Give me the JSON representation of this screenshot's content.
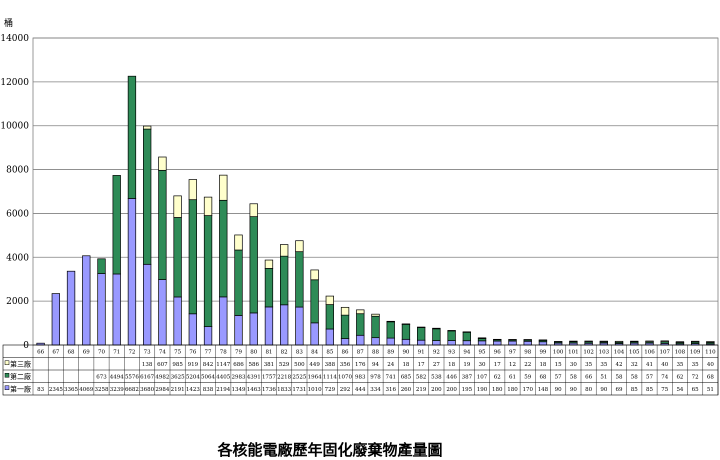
{
  "chart_data": {
    "type": "bar",
    "stacked": true,
    "title": "各核能電廠歷年固化廢棄物產量圖",
    "ylabel": "桶",
    "ylim": [
      0,
      14000
    ],
    "yticks": [
      0,
      2000,
      4000,
      6000,
      8000,
      10000,
      12000,
      14000
    ],
    "grid": true,
    "legend": "data-table-left",
    "categories": [
      "66",
      "67",
      "68",
      "69",
      "70",
      "71",
      "72",
      "73",
      "74",
      "75",
      "76",
      "77",
      "78",
      "79",
      "80",
      "81",
      "82",
      "83",
      "84",
      "85",
      "86",
      "87",
      "88",
      "89",
      "90",
      "91",
      "92",
      "93",
      "94",
      "95",
      "96",
      "97",
      "98",
      "99",
      "100",
      "101",
      "102",
      "103",
      "104",
      "105",
      "106",
      "107",
      "108",
      "109",
      "110"
    ],
    "series": [
      {
        "name": "第一廠",
        "color": "#9999ff",
        "values": [
          83,
          2345,
          3365,
          4069,
          3258,
          3239,
          6682,
          3680,
          2984,
          2191,
          1423,
          838,
          2194,
          1349,
          1463,
          1736,
          1833,
          1731,
          1010,
          729,
          292,
          444,
          334,
          316,
          260,
          219,
          200,
          200,
          195,
          190,
          180,
          180,
          170,
          148,
          90,
          90,
          80,
          90,
          69,
          85,
          85,
          75,
          54,
          65,
          51
        ]
      },
      {
        "name": "第二廠",
        "color": "#2e8b57",
        "values": [
          null,
          null,
          null,
          null,
          673,
          4494,
          5576,
          6167,
          4982,
          3625,
          5204,
          5064,
          4405,
          2983,
          4391,
          1757,
          2218,
          2525,
          1964,
          1114,
          1070,
          983,
          978,
          741,
          685,
          582,
          538,
          446,
          387,
          107,
          62,
          61,
          59,
          68,
          57,
          58,
          66,
          51,
          58,
          58,
          57,
          74,
          62,
          72,
          68
        ]
      },
      {
        "name": "第三廠",
        "color": "#ffffcc",
        "values": [
          null,
          null,
          null,
          null,
          null,
          null,
          null,
          138,
          607,
          985,
          919,
          842,
          1147,
          686,
          586,
          381,
          529,
          500,
          449,
          388,
          356,
          176,
          94,
          24,
          18,
          17,
          27,
          18,
          19,
          30,
          17,
          12,
          22,
          18,
          15,
          30,
          35,
          35,
          42,
          32,
          41,
          40,
          35,
          35,
          40
        ]
      }
    ]
  }
}
